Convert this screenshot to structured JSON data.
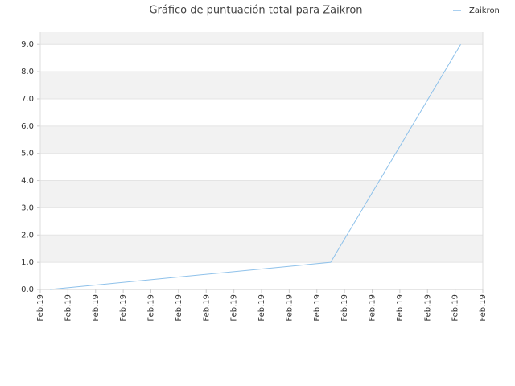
{
  "chart_data": {
    "type": "line",
    "title": "Gráfico de puntuación total para Zaikron",
    "x": [
      0.35,
      10.5,
      15.2
    ],
    "series": [
      {
        "name": "Zaikron",
        "color": "#8ec1ea",
        "values": [
          0,
          1,
          9
        ]
      }
    ],
    "xlim": [
      0,
      16
    ],
    "xticks": [
      {
        "value": 0,
        "label": "Feb.19"
      },
      {
        "value": 1,
        "label": "Feb.19"
      },
      {
        "value": 2,
        "label": "Feb.19"
      },
      {
        "value": 3,
        "label": "Feb.19"
      },
      {
        "value": 4,
        "label": "Feb.19"
      },
      {
        "value": 5,
        "label": "Feb.19"
      },
      {
        "value": 6,
        "label": "Feb.19"
      },
      {
        "value": 7,
        "label": "Feb.19"
      },
      {
        "value": 8,
        "label": "Feb.19"
      },
      {
        "value": 9,
        "label": "Feb.19"
      },
      {
        "value": 10,
        "label": "Feb.19"
      },
      {
        "value": 11,
        "label": "Feb.19"
      },
      {
        "value": 12,
        "label": "Feb.19"
      },
      {
        "value": 13,
        "label": "Feb.19"
      },
      {
        "value": 14,
        "label": "Feb.19"
      },
      {
        "value": 15,
        "label": "Feb.19"
      },
      {
        "value": 16,
        "label": "Feb.19"
      }
    ],
    "ylim": [
      0,
      9.45
    ],
    "yticks": [
      {
        "value": 0,
        "label": "0.0"
      },
      {
        "value": 1,
        "label": "1.0"
      },
      {
        "value": 2,
        "label": "2.0"
      },
      {
        "value": 3,
        "label": "3.0"
      },
      {
        "value": 4,
        "label": "4.0"
      },
      {
        "value": 5,
        "label": "5.0"
      },
      {
        "value": 6,
        "label": "6.0"
      },
      {
        "value": 7,
        "label": "7.0"
      },
      {
        "value": 8,
        "label": "8.0"
      },
      {
        "value": 9,
        "label": "9.0"
      }
    ],
    "grid": true,
    "legend": "top-right"
  }
}
